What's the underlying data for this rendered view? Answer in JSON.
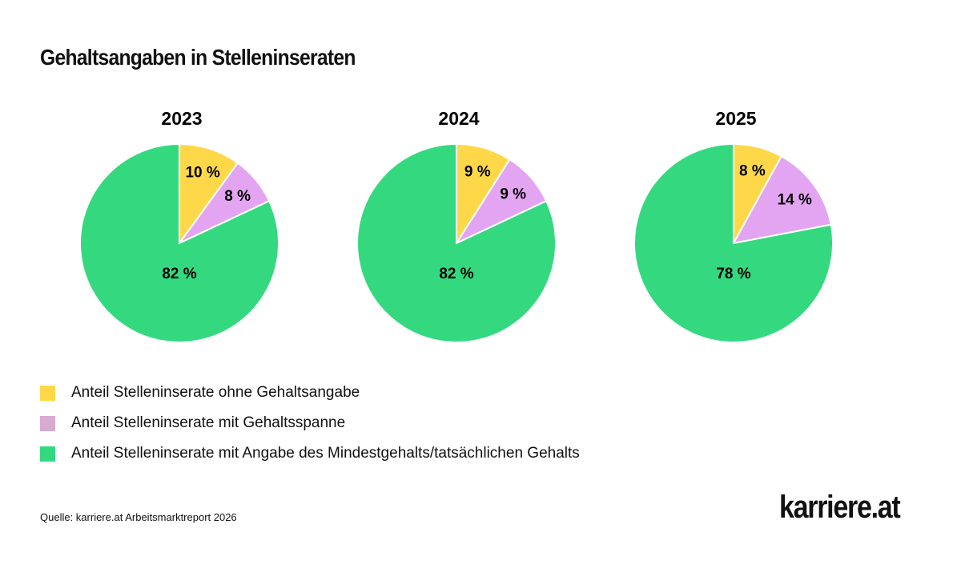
{
  "title": "Gehaltsangaben in Stelleninseraten",
  "chart_data": [
    {
      "type": "pie",
      "title": "2023",
      "categories": [
        "Anteil Stelleninserate ohne Gehaltsangabe",
        "Anteil Stelleninserate mit Gehaltsspanne",
        "Anteil Stelleninserate mit Angabe des Mindestgehalts/tatsächlichen Gehalts"
      ],
      "values": [
        10,
        8,
        82
      ],
      "labels": [
        "10 %",
        "8 %",
        "82 %"
      ]
    },
    {
      "type": "pie",
      "title": "2024",
      "categories": [
        "Anteil Stelleninserate ohne Gehaltsangabe",
        "Anteil Stelleninserate mit Gehaltsspanne",
        "Anteil Stelleninserate mit Angabe des Mindestgehalts/tatsächlichen Gehalts"
      ],
      "values": [
        9,
        9,
        82
      ],
      "labels": [
        "9 %",
        "9 %",
        "82 %"
      ]
    },
    {
      "type": "pie",
      "title": "2025",
      "categories": [
        "Anteil Stelleninserate ohne Gehaltsangabe",
        "Anteil Stelleninserate mit Gehaltsspanne",
        "Anteil Stelleninserate mit Angabe des Mindestgehalts/tatsächlichen Gehalts"
      ],
      "values": [
        8,
        14,
        78
      ],
      "labels": [
        "8 %",
        "14 %",
        "78 %"
      ]
    }
  ],
  "colors": [
    "#ffd84a",
    "#e3a5f2",
    "#34d97f"
  ],
  "legend_colors": [
    "#ffd84a",
    "#d8abd3",
    "#34d97f"
  ],
  "legend": [
    "Anteil Stelleninserate ohne Gehaltsangabe",
    "Anteil Stelleninserate mit Gehaltsspanne",
    "Anteil Stelleninserate mit Angabe des Mindestgehalts/tatsächlichen Gehalts"
  ],
  "source": "Quelle: karriere.at Arbeitsmarktreport 2026",
  "logo": "karriere.at"
}
